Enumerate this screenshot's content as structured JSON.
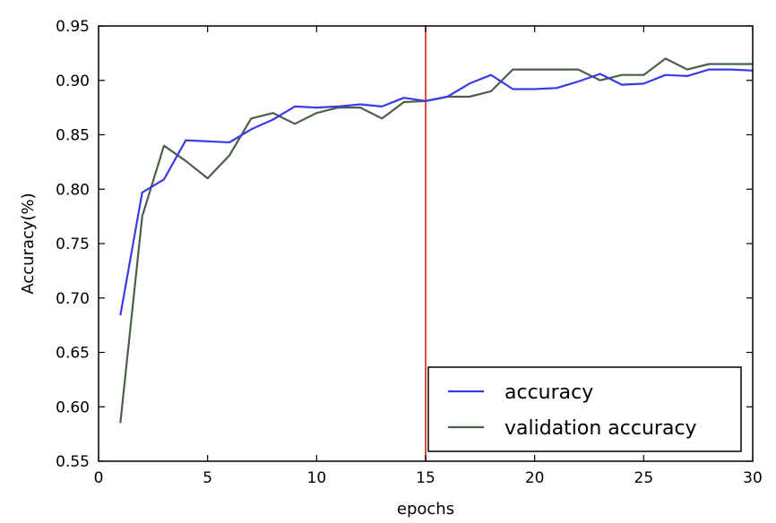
{
  "chart_data": {
    "type": "line",
    "title": "",
    "xlabel": "epochs",
    "ylabel": "Accuracy(%)",
    "xlim": [
      0,
      30
    ],
    "ylim": [
      0.55,
      0.95
    ],
    "xticks": [
      0,
      5,
      10,
      15,
      20,
      25,
      30
    ],
    "yticks": [
      "0.55",
      "0.60",
      "0.65",
      "0.70",
      "0.75",
      "0.80",
      "0.85",
      "0.90",
      "0.95"
    ],
    "grid": false,
    "legend_position": "bottom-right",
    "vline": {
      "x": 15,
      "color": "#e05040"
    },
    "series": [
      {
        "name": "accuracy",
        "color": "#3a3ae8",
        "x": [
          1,
          2,
          3,
          4,
          5,
          6,
          7,
          8,
          9,
          10,
          11,
          12,
          13,
          14,
          15,
          16,
          17,
          18,
          19,
          20,
          21,
          22,
          23,
          24,
          25,
          26,
          27,
          28,
          29,
          30
        ],
        "values": [
          0.684,
          0.797,
          0.809,
          0.845,
          0.844,
          0.843,
          0.855,
          0.864,
          0.876,
          0.875,
          0.876,
          0.878,
          0.876,
          0.884,
          0.881,
          0.885,
          0.897,
          0.905,
          0.892,
          0.892,
          0.893,
          0.899,
          0.906,
          0.896,
          0.897,
          0.905,
          0.904,
          0.91,
          0.91,
          0.909
        ]
      },
      {
        "name": "validation accuracy",
        "color": "#4b5e4b",
        "x": [
          1,
          2,
          3,
          4,
          5,
          6,
          7,
          8,
          9,
          10,
          11,
          12,
          13,
          14,
          15,
          16,
          17,
          18,
          19,
          20,
          21,
          22,
          23,
          24,
          25,
          26,
          27,
          28,
          29,
          30
        ],
        "values": [
          0.585,
          0.775,
          0.84,
          0.826,
          0.81,
          0.831,
          0.865,
          0.87,
          0.86,
          0.87,
          0.875,
          0.875,
          0.865,
          0.88,
          0.881,
          0.885,
          0.885,
          0.89,
          0.91,
          0.91,
          0.91,
          0.91,
          0.9,
          0.905,
          0.905,
          0.92,
          0.91,
          0.915,
          0.915,
          0.915
        ]
      }
    ]
  }
}
